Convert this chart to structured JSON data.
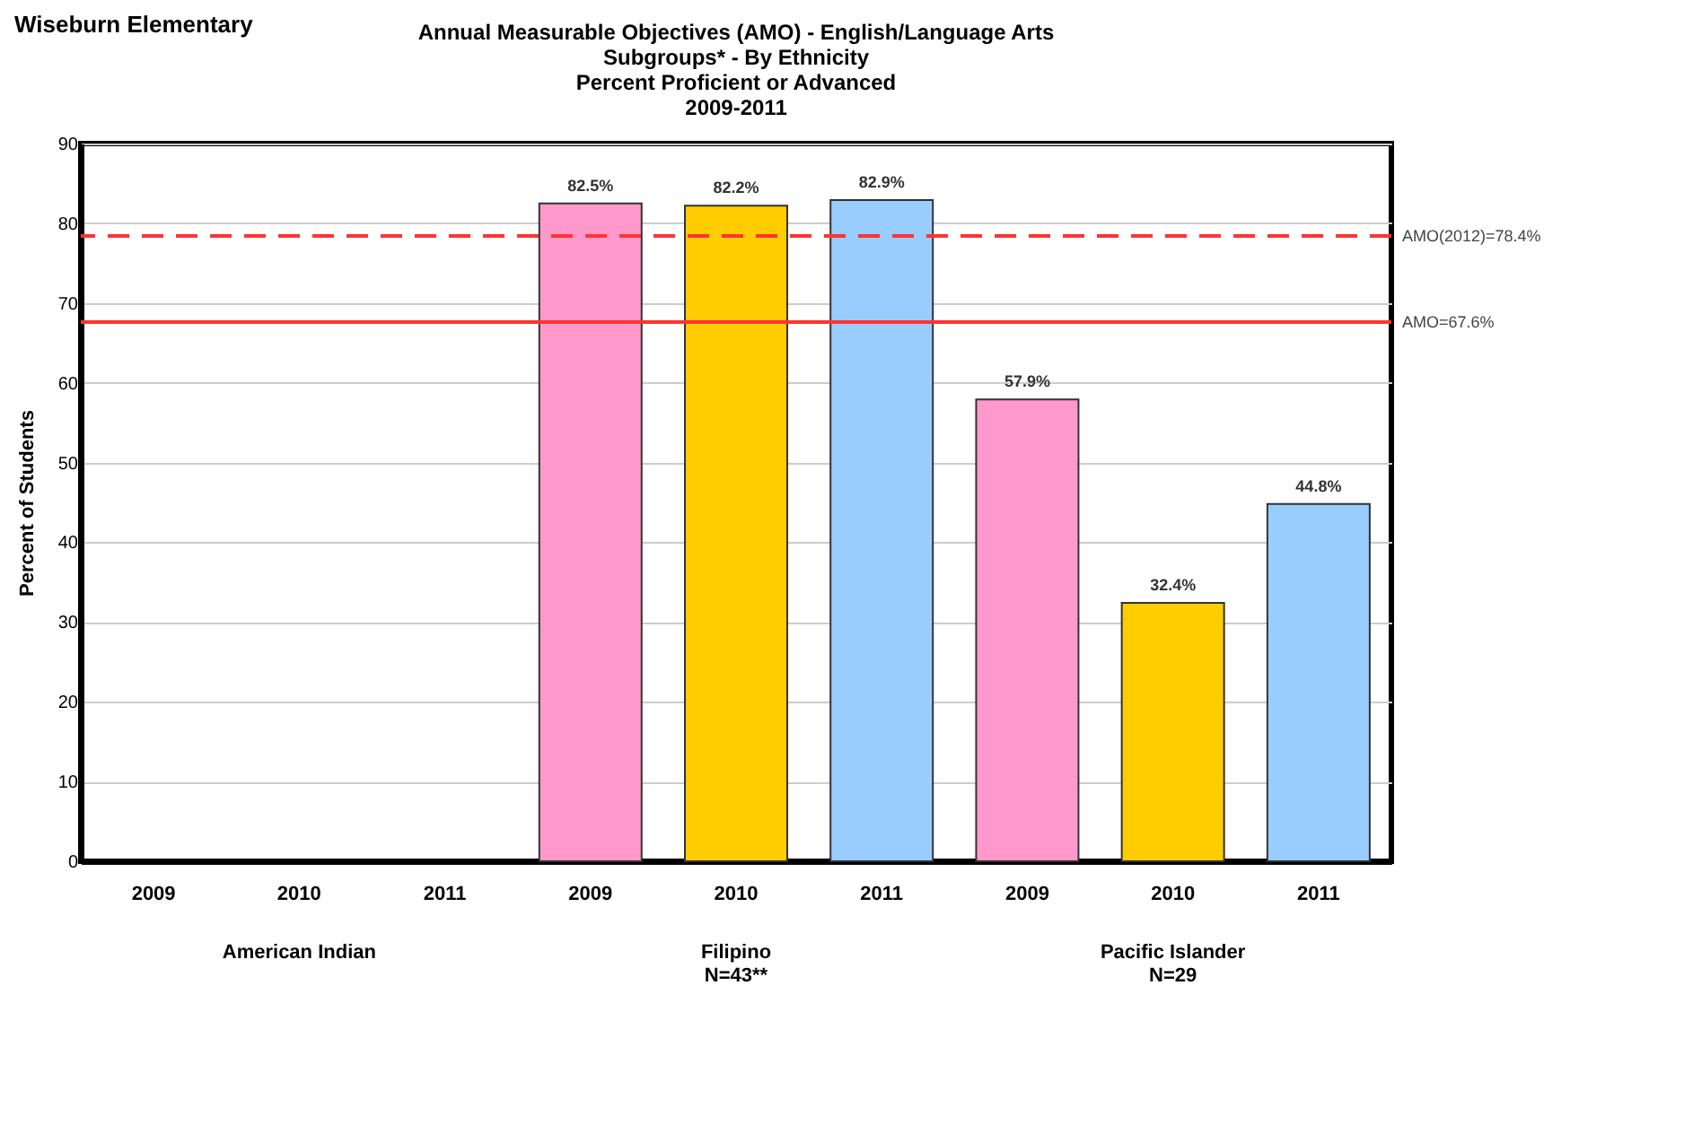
{
  "chart_data": {
    "type": "bar",
    "title": "Annual Measurable Objectives (AMO) - English/Language Arts",
    "subtitle": "Subgroups* - By Ethnicity\nPercent Proficient or Advanced\n2009-2011",
    "ylabel": "Percent of Students",
    "annotations": [
      "Wiseburn Elementary",
      "American Indian",
      "Filipino\nN=43**",
      "Pacific Islander\nN=29"
    ],
    "categories": [
      "2009",
      "2010",
      "2011",
      "2009",
      "2010",
      "2011",
      "2009",
      "2010",
      "2011"
    ],
    "values": [
      null,
      null,
      null,
      82.5,
      82.2,
      82.9,
      57.9,
      32.4,
      44.8
    ],
    "colors": [
      "#ff99cc",
      "#ffcc00",
      "#99ccff",
      "#ff99cc",
      "#ffcc00",
      "#99ccff",
      "#ff99cc",
      "#ffcc00",
      "#99ccff"
    ],
    "value_labels": [
      null,
      null,
      null,
      "82.5%",
      "82.2%",
      "82.9%",
      "57.9%",
      "32.4%",
      "44.8%"
    ],
    "ylim": [
      0,
      90
    ],
    "yticks": [
      0,
      10,
      20,
      30,
      40,
      50,
      60,
      70,
      80,
      90
    ],
    "grid": "y",
    "ref_lines": [
      {
        "axis": "y",
        "value": 78.4,
        "label": "AMO(2012)=78.4%",
        "color": "#ff3333",
        "line_style": "dashed"
      },
      {
        "axis": "y",
        "value": 67.6,
        "label": "AMO=67.6%",
        "color": "#ff3333",
        "line_style": "solid"
      }
    ]
  }
}
